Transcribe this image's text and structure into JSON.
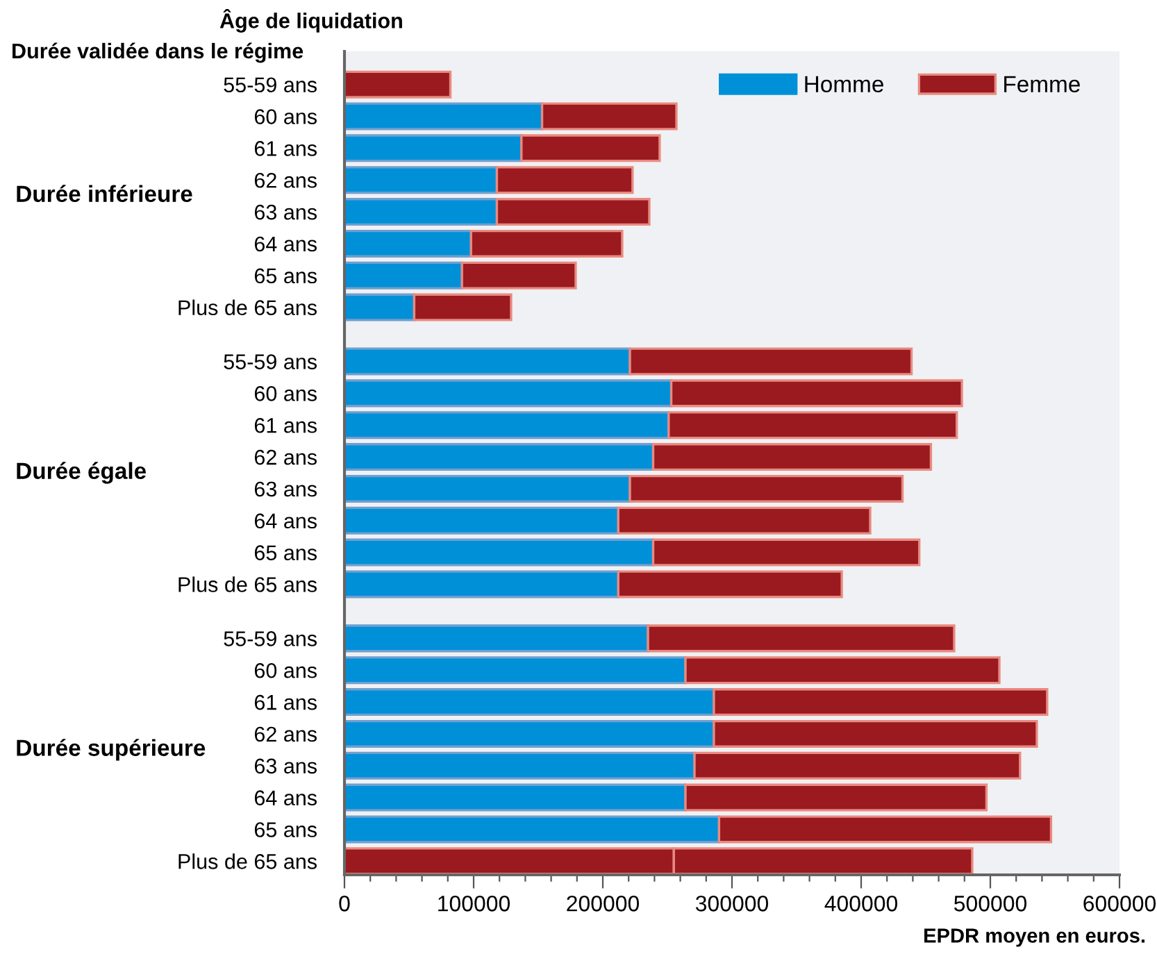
{
  "chart_data": {
    "type": "bar",
    "orientation": "horizontal",
    "stacked": true,
    "ylabel": "Durée validée dans le régime",
    "xlabel": "EPDR moyen en euros.",
    "annotations": [
      "Âge de liquidation",
      "Durée inférieure",
      "Durée égale",
      "Durée supérieure"
    ],
    "categories": [
      "55-59 ans",
      "60 ans",
      "61 ans",
      "62 ans",
      "63 ans",
      "64 ans",
      "65 ans",
      "Plus de 65 ans",
      "55-59 ans",
      "60 ans",
      "61 ans",
      "62 ans",
      "63 ans",
      "64 ans",
      "65 ans",
      "Plus de 65 ans",
      "55-59 ans",
      "60 ans",
      "61 ans",
      "62 ans",
      "63 ans",
      "64 ans",
      "65 ans",
      "Plus de 65 ans"
    ],
    "series": [
      {
        "name": "Homme",
        "color": "#0090d8",
        "colors": [
          "#0090d8",
          "#0090d8",
          "#0090d8",
          "#0090d8",
          "#0090d8",
          "#0090d8",
          "#0090d8",
          "#0090d8",
          "#0090d8",
          "#0090d8",
          "#0090d8",
          "#0090d8",
          "#0090d8",
          "#0090d8",
          "#0090d8",
          "#0090d8",
          "#0090d8",
          "#0090d8",
          "#0090d8",
          "#0090d8",
          "#0090d8",
          "#0090d8",
          "#0090d8",
          "#9a1a20"
        ],
        "values": [
          null,
          153000,
          137000,
          118000,
          118000,
          98000,
          91000,
          54000,
          221000,
          253000,
          251000,
          239000,
          221000,
          212000,
          239000,
          212000,
          235000,
          264000,
          286000,
          286000,
          271000,
          264000,
          290000,
          255000
        ]
      },
      {
        "name": "Femme",
        "color": "#9a1a20",
        "values": [
          82000,
          104000,
          107000,
          105000,
          118000,
          117000,
          88000,
          75000,
          218000,
          225000,
          223000,
          215000,
          211000,
          195000,
          206000,
          173000,
          237000,
          243000,
          258000,
          250000,
          252000,
          233000,
          257000,
          231000
        ]
      }
    ],
    "xlim": [
      0,
      600000
    ],
    "xticks": [
      0,
      {
        "value": 20000,
        "label": null
      },
      {
        "value": 40000,
        "label": null
      },
      {
        "value": 60000,
        "label": null
      },
      {
        "value": 80000,
        "label": null
      },
      100000,
      {
        "value": 120000,
        "label": null
      },
      {
        "value": 140000,
        "label": null
      },
      {
        "value": 160000,
        "label": null
      },
      {
        "value": 180000,
        "label": null
      },
      200000,
      {
        "value": 220000,
        "label": null
      },
      {
        "value": 240000,
        "label": null
      },
      {
        "value": 260000,
        "label": null
      },
      {
        "value": 280000,
        "label": null
      },
      300000,
      {
        "value": 320000,
        "label": null
      },
      {
        "value": 340000,
        "label": null
      },
      {
        "value": 360000,
        "label": null
      },
      {
        "value": 380000,
        "label": null
      },
      400000,
      {
        "value": 420000,
        "label": null
      },
      {
        "value": 440000,
        "label": null
      },
      {
        "value": 460000,
        "label": null
      },
      {
        "value": 480000,
        "label": null
      },
      500000,
      {
        "value": 520000,
        "label": null
      },
      {
        "value": 540000,
        "label": null
      },
      {
        "value": 560000,
        "label": null
      },
      {
        "value": 580000,
        "label": null
      },
      600000
    ],
    "legend": "top right",
    "grid": false
  }
}
